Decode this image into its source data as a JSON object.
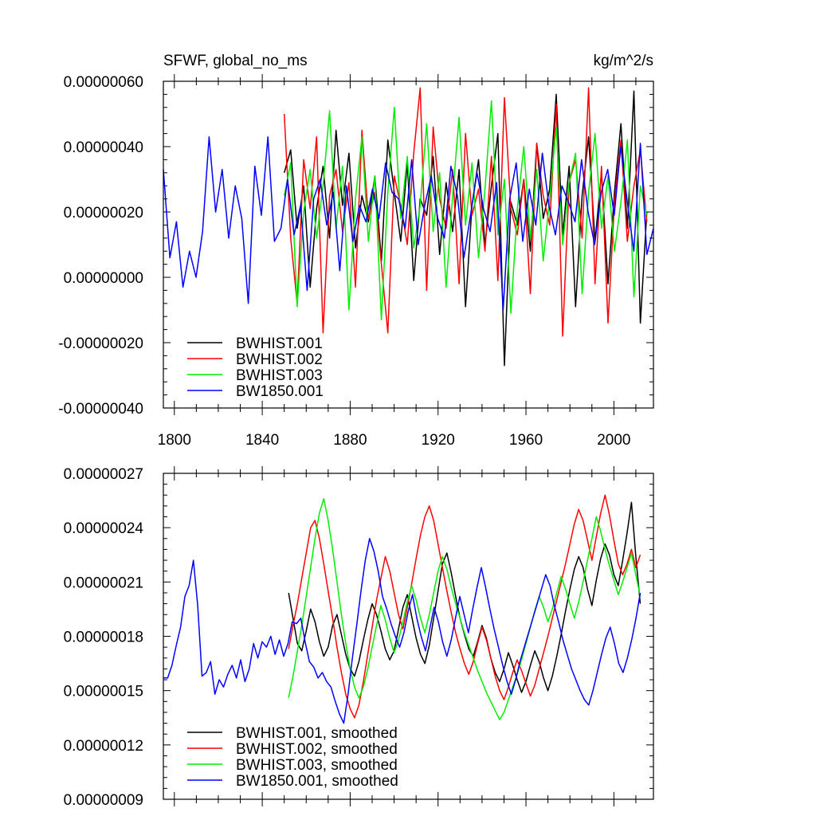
{
  "chart_data": [
    {
      "type": "line",
      "title_left": "SFWF, global_no_ms",
      "title_right": "kg/m^2/s",
      "x_ticks": [
        1800,
        1840,
        1880,
        1920,
        1960,
        2000
      ],
      "xlim": [
        1795,
        2018
      ],
      "ylim": [
        -4e-07,
        6e-07
      ],
      "y_tick_labels": [
        "0.00000060",
        "0.00000040",
        "0.00000020",
        "0.00000000",
        "-0.00000020",
        "-0.00000040"
      ],
      "y_ticks": [
        6e-07,
        4e-07,
        2e-07,
        0.0,
        -2e-07,
        -4e-07
      ],
      "legend": [
        "BWHIST.001",
        "BWHIST.002",
        "BWHIST.003",
        "BW1850.001"
      ],
      "legend_position": "bottom-left",
      "series": [
        {
          "name": "BWHIST.001",
          "color": "#000000",
          "x_start": 1850,
          "x_end": 2015,
          "x_step": 3,
          "values": [
            3.2e-07,
            3.9e-07,
            1.5e-07,
            2.8e-07,
            -3e-08,
            2.1e-07,
            3.4e-07,
            1.2e-07,
            4.5e-07,
            2.2e-07,
            3.8e-07,
            9e-08,
            2.5e-07,
            1.7e-07,
            3.1e-07,
            5e-08,
            4.2e-07,
            2.6e-07,
            1.1e-07,
            3.5e-07,
            -1e-08,
            2.4e-07,
            1.9e-07,
            3.7e-07,
            7e-08,
            2.9e-07,
            1.4e-07,
            3.3e-07,
            -9e-08,
            2.2e-07,
            3.6e-07,
            1e-07,
            2.8e-07,
            4.4e-07,
            -2.7e-07,
            2.3e-07,
            1.6e-07,
            3e-07,
            8e-08,
            4.1e-07,
            1.8e-07,
            2.7e-07,
            5.6e-07,
            1.3e-07,
            3.4e-07,
            -9e-08,
            2.5e-07,
            4.3e-07,
            1.1e-07,
            3.2e-07,
            -2e-08,
            2.6e-07,
            4.7e-07,
            1.5e-07,
            5.7e-07,
            -1.4e-07,
            2e-07
          ]
        },
        {
          "name": "BWHIST.002",
          "color": "#ff0000",
          "x_start": 1850,
          "x_end": 2015,
          "x_step": 3,
          "values": [
            5e-07,
            1.2e-07,
            -8e-08,
            3.6e-07,
            2.1e-07,
            4.3e-07,
            -1.7e-07,
            2.5e-07,
            3.3e-07,
            1.4e-07,
            2.9e-07,
            -3e-08,
            4.5e-07,
            1.8e-07,
            2.6e-07,
            4e-08,
            -1.7e-07,
            3.1e-07,
            2.2e-07,
            1e-07,
            3.8e-07,
            5.8e-07,
            -4e-08,
            4.6e-07,
            2.4e-07,
            1.5e-07,
            3.3e-07,
            -2e-08,
            4.4e-07,
            1.9e-07,
            2.7e-07,
            8e-08,
            3.7e-07,
            -1e-08,
            5.5e-07,
            2.1e-07,
            1.3e-07,
            3e-07,
            -5e-08,
            4.1e-07,
            2.5e-07,
            1.6e-07,
            5.3e-07,
            -1.8e-07,
            2.9e-07,
            3.6e-07,
            1.2e-07,
            5.8e-07,
            -2e-08,
            3.4e-07,
            -1.4e-07,
            2.3e-07,
            4.2e-07,
            1.1e-07,
            2.8e-07,
            3.9e-07,
            1.7e-07
          ]
        },
        {
          "name": "BWHIST.003",
          "color": "#00ee00",
          "x_start": 1850,
          "x_end": 2015,
          "x_step": 3,
          "values": [
            2.5e-07,
            3.5e-07,
            -9e-08,
            2e-07,
            3.3e-07,
            1.2e-07,
            2.8e-07,
            5.1e-07,
            1.5e-07,
            3.4e-07,
            -1e-07,
            2.4e-07,
            4.3e-07,
            1.1e-07,
            3.1e-07,
            -1.3e-07,
            2.6e-07,
            5.2e-07,
            1.8e-07,
            3.7e-07,
            9e-08,
            2.2e-07,
            4.7e-07,
            1.4e-07,
            3.2e-07,
            -3e-08,
            2.5e-07,
            4.9e-07,
            1.6e-07,
            3.5e-07,
            6e-08,
            2.7e-07,
            5.4e-07,
            1.3e-07,
            3e-07,
            -1.1e-07,
            2.1e-07,
            4e-07,
            1.2e-07,
            3.3e-07,
            5e-08,
            2.4e-07,
            4.6e-07,
            1e-07,
            2.9e-07,
            3.8e-07,
            -5e-08,
            2.6e-07,
            4.4e-07,
            1.5e-07,
            3.1e-07,
            8e-08,
            2.3e-07,
            4.2e-07,
            -6e-08,
            2.8e-07,
            1.9e-07
          ]
        },
        {
          "name": "BW1850.001",
          "color": "#0000ff",
          "x_start": 1795,
          "x_end": 2018,
          "x_step": 3,
          "values": [
            3.3e-07,
            6e-08,
            1.7e-07,
            -3e-08,
            8e-08,
            0.0,
            1.4e-07,
            4.3e-07,
            2e-07,
            3.3e-07,
            1.2e-07,
            2.8e-07,
            1.8e-07,
            -8e-08,
            3.4e-07,
            1.9e-07,
            4.3e-07,
            1.1e-07,
            1.5e-07,
            3e-07,
            1.3e-07,
            2.2e-07,
            -4e-08,
            2.4e-07,
            3e-07,
            1.6e-07,
            2.6e-07,
            2e-08,
            2.8e-07,
            1.1e-07,
            2.2e-07,
            1.7e-07,
            2.7e-07,
            1.8e-07,
            3.5e-07,
            2.6e-07,
            2.4e-07,
            1.5e-07,
            3.6e-07,
            1e-07,
            2.2e-07,
            3.1e-07,
            1.8e-07,
            1.2e-07,
            3.4e-07,
            2.5e-07,
            6e-08,
            1.9e-07,
            3.2e-07,
            2.1e-07,
            1.4e-07,
            2.9e-07,
            -1e-07,
            2.4e-07,
            3.5e-07,
            1.1e-07,
            2.7e-07,
            1.6e-07,
            3.8e-07,
            2.2e-07,
            1.3e-07,
            2.8e-07,
            2.3e-07,
            1.7e-07,
            3.6e-07,
            2e-07,
            1e-07,
            2.6e-07,
            3.3e-07,
            1.9e-07,
            4e-07,
            2.3e-07,
            8e-08,
            4.1e-07,
            7e-08,
            1.5e-07
          ]
        }
      ]
    },
    {
      "type": "line",
      "xlim": [
        1795,
        2018
      ],
      "ylim": [
        9e-08,
        2.7e-07
      ],
      "y_tick_labels": [
        "0.00000027",
        "0.00000024",
        "0.00000021",
        "0.00000018",
        "0.00000015",
        "0.00000012",
        "0.00000009"
      ],
      "y_ticks": [
        2.7e-07,
        2.4e-07,
        2.1e-07,
        1.8e-07,
        1.5e-07,
        1.2e-07,
        9e-08
      ],
      "legend": [
        "BWHIST.001, smoothed",
        "BWHIST.002, smoothed",
        "BWHIST.003, smoothed",
        "BW1850.001, smoothed"
      ],
      "legend_position": "bottom-left",
      "series": [
        {
          "name": "BWHIST.001, smoothed",
          "color": "#000000",
          "x_start": 1852,
          "x_end": 2012,
          "x_step": 2,
          "values": [
            2.04e-07,
            1.9e-07,
            1.76e-07,
            1.72e-07,
            1.83e-07,
            1.95e-07,
            1.88e-07,
            1.77e-07,
            1.69e-07,
            1.74e-07,
            1.86e-07,
            1.92e-07,
            1.81e-07,
            1.7e-07,
            1.62e-07,
            1.58e-07,
            1.66e-07,
            1.78e-07,
            1.89e-07,
            1.98e-07,
            1.92e-07,
            1.83e-07,
            1.73e-07,
            1.67e-07,
            1.72e-07,
            1.84e-07,
            1.96e-07,
            2.03e-07,
            1.91e-07,
            1.79e-07,
            1.7e-07,
            1.65e-07,
            1.75e-07,
            1.9e-07,
            2.05e-07,
            2.2e-07,
            2.26e-07,
            2.15e-07,
            2.02e-07,
            1.9e-07,
            1.81e-07,
            1.73e-07,
            1.69e-07,
            1.77e-07,
            1.86e-07,
            1.79e-07,
            1.68e-07,
            1.6e-07,
            1.55e-07,
            1.62e-07,
            1.71e-07,
            1.64e-07,
            1.56e-07,
            1.49e-07,
            1.55e-07,
            1.64e-07,
            1.72e-07,
            1.66e-07,
            1.57e-07,
            1.5e-07,
            1.58e-07,
            1.69e-07,
            1.81e-07,
            1.94e-07,
            2.06e-07,
            2.17e-07,
            2.24e-07,
            2.18e-07,
            2.06e-07,
            1.97e-07,
            2.11e-07,
            2.23e-07,
            2.31e-07,
            2.25e-07,
            2.14e-07,
            2.08e-07,
            2.22e-07,
            2.37e-07,
            2.54e-07,
            2.24e-07,
            1.98e-07
          ]
        },
        {
          "name": "BWHIST.002, smoothed",
          "color": "#ff0000",
          "x_start": 1852,
          "x_end": 2012,
          "x_step": 2,
          "values": [
            1.73e-07,
            1.86e-07,
            1.98e-07,
            2.12e-07,
            2.26e-07,
            2.4e-07,
            2.44e-07,
            2.34e-07,
            2.2e-07,
            2.05e-07,
            1.9e-07,
            1.74e-07,
            1.6e-07,
            1.48e-07,
            1.4e-07,
            1.35e-07,
            1.42e-07,
            1.55e-07,
            1.7e-07,
            1.85e-07,
            2e-07,
            2.12e-07,
            2.24e-07,
            2.16e-07,
            2.04e-07,
            1.92e-07,
            1.84e-07,
            1.96e-07,
            2.09e-07,
            2.23e-07,
            2.36e-07,
            2.46e-07,
            2.52e-07,
            2.44e-07,
            2.31e-07,
            2.18e-07,
            2.05e-07,
            1.93e-07,
            1.82e-07,
            1.73e-07,
            1.65e-07,
            1.59e-07,
            1.66e-07,
            1.76e-07,
            1.85e-07,
            1.78e-07,
            1.68e-07,
            1.58e-07,
            1.5e-07,
            1.45e-07,
            1.52e-07,
            1.6e-07,
            1.67e-07,
            1.61e-07,
            1.54e-07,
            1.47e-07,
            1.53e-07,
            1.62e-07,
            1.71e-07,
            1.8e-07,
            1.9e-07,
            2e-07,
            2.1e-07,
            2.2e-07,
            2.31e-07,
            2.42e-07,
            2.5e-07,
            2.44e-07,
            2.33e-07,
            2.22e-07,
            2.35e-07,
            2.48e-07,
            2.58e-07,
            2.47e-07,
            2.33e-07,
            2.2e-07,
            2.14e-07,
            2.2e-07,
            2.28e-07,
            2.18e-07,
            2.25e-07
          ]
        },
        {
          "name": "BWHIST.003, smoothed",
          "color": "#00ee00",
          "x_start": 1852,
          "x_end": 2012,
          "x_step": 2,
          "values": [
            1.46e-07,
            1.58e-07,
            1.72e-07,
            1.86e-07,
            2.02e-07,
            2.18e-07,
            2.34e-07,
            2.48e-07,
            2.56e-07,
            2.44e-07,
            2.28e-07,
            2.1e-07,
            1.92e-07,
            1.76e-07,
            1.62e-07,
            1.52e-07,
            1.46e-07,
            1.52e-07,
            1.62e-07,
            1.74e-07,
            1.86e-07,
            1.97e-07,
            1.89e-07,
            1.79e-07,
            1.71e-07,
            1.78e-07,
            1.88e-07,
            1.99e-07,
            2.08e-07,
            2e-07,
            1.9e-07,
            1.82e-07,
            1.92e-07,
            2.04e-07,
            2.16e-07,
            2.24e-07,
            2.17e-07,
            2.07e-07,
            1.98e-07,
            1.9e-07,
            1.82e-07,
            1.75e-07,
            1.68e-07,
            1.61e-07,
            1.55e-07,
            1.49e-07,
            1.44e-07,
            1.39e-07,
            1.34e-07,
            1.38e-07,
            1.45e-07,
            1.52e-07,
            1.59e-07,
            1.67e-07,
            1.76e-07,
            1.85e-07,
            1.94e-07,
            2.02e-07,
            1.96e-07,
            1.88e-07,
            1.95e-07,
            2.04e-07,
            2.13e-07,
            2.06e-07,
            1.98e-07,
            1.9e-07,
            1.99e-07,
            2.1e-07,
            2.22e-07,
            2.34e-07,
            2.46e-07,
            2.38e-07,
            2.28e-07,
            2.19e-07,
            2.11e-07,
            2.03e-07,
            2.1e-07,
            2.18e-07,
            2.26e-07,
            2.14e-07,
            2.02e-07
          ]
        },
        {
          "name": "BW1850.001, smoothed",
          "color": "#0000ff",
          "x_start": 1795,
          "x_end": 2012,
          "x_step": 2,
          "values": [
            1.57e-07,
            1.57e-07,
            1.64e-07,
            1.75e-07,
            1.85e-07,
            2.02e-07,
            2.08e-07,
            2.22e-07,
            1.97e-07,
            1.58e-07,
            1.6e-07,
            1.66e-07,
            1.48e-07,
            1.56e-07,
            1.52e-07,
            1.59e-07,
            1.64e-07,
            1.57e-07,
            1.67e-07,
            1.55e-07,
            1.62e-07,
            1.76e-07,
            1.68e-07,
            1.77e-07,
            1.74e-07,
            1.8e-07,
            1.7e-07,
            1.78e-07,
            1.69e-07,
            1.76e-07,
            1.88e-07,
            1.87e-07,
            1.9e-07,
            1.77e-07,
            1.66e-07,
            1.63e-07,
            1.57e-07,
            1.6e-07,
            1.55e-07,
            1.52e-07,
            1.44e-07,
            1.37e-07,
            1.32e-07,
            1.48e-07,
            1.68e-07,
            1.86e-07,
            2.05e-07,
            2.22e-07,
            2.34e-07,
            2.27e-07,
            2.16e-07,
            2.02e-07,
            1.95e-07,
            1.87e-07,
            1.8e-07,
            1.74e-07,
            1.82e-07,
            1.94e-07,
            2.03e-07,
            1.9e-07,
            1.8e-07,
            1.72e-07,
            1.84e-07,
            1.96e-07,
            1.88e-07,
            1.77e-07,
            1.69e-07,
            1.78e-07,
            1.9e-07,
            2.02e-07,
            1.92e-07,
            1.82e-07,
            1.95e-07,
            2.07e-07,
            2.18e-07,
            2.07e-07,
            1.95e-07,
            1.84e-07,
            1.74e-07,
            1.64e-07,
            1.55e-07,
            1.48e-07,
            1.56e-07,
            1.66e-07,
            1.74e-07,
            1.82e-07,
            1.9e-07,
            1.98e-07,
            2.06e-07,
            2.14e-07,
            2.08e-07,
            1.97e-07,
            1.88e-07,
            1.78e-07,
            1.7e-07,
            1.62e-07,
            1.56e-07,
            1.5e-07,
            1.45e-07,
            1.42e-07,
            1.5e-07,
            1.6e-07,
            1.7e-07,
            1.79e-07,
            1.85e-07,
            1.76e-07,
            1.65e-07,
            1.6e-07,
            1.68e-07,
            1.78e-07,
            1.9e-07,
            2.04e-07
          ]
        }
      ]
    }
  ]
}
